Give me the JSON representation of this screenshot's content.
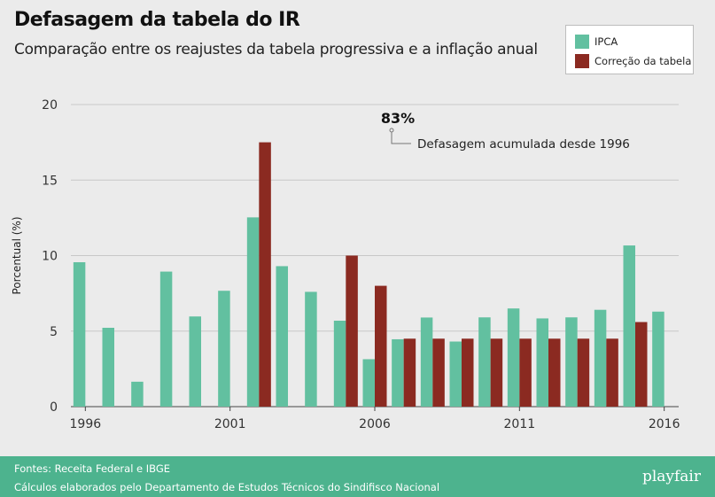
{
  "header": {
    "title": "Defasagem da tabela do IR",
    "subtitle": "Comparação entre os reajustes da tabela progressiva e a inflação anual"
  },
  "legend": [
    {
      "label": "IPCA",
      "color": "#62c0a0"
    },
    {
      "label": "Correção da tabela",
      "color": "#8b2a21"
    }
  ],
  "annotation": {
    "value": "83%",
    "label": "Defasagem acumulada desde 1996"
  },
  "footer": {
    "line1": "Fontes: Receita Federal e IBGE",
    "line2": "Cálculos elaborados pelo Departamento de Estudos Técnicos do Sindifisco Nacional",
    "brand": "playfair"
  },
  "chart_data": {
    "type": "bar",
    "ylabel": "Porcentual (%)",
    "xlabel": "",
    "ylim": [
      0,
      20
    ],
    "yticks": [
      0,
      5,
      10,
      15,
      20
    ],
    "xtick_labels": [
      "1996",
      "2001",
      "2006",
      "2011",
      "2016"
    ],
    "grid": true,
    "legend_position": "top-right",
    "categories": [
      "1996",
      "1997",
      "1998",
      "1999",
      "2000",
      "2001",
      "2002",
      "2003",
      "2004",
      "2005",
      "2006",
      "2007",
      "2008",
      "2009",
      "2010",
      "2011",
      "2012",
      "2013",
      "2014",
      "2015",
      "2016"
    ],
    "series": [
      {
        "name": "IPCA",
        "color": "#62c0a0",
        "values": [
          9.56,
          5.22,
          1.65,
          8.94,
          5.97,
          7.67,
          12.53,
          9.3,
          7.6,
          5.69,
          3.14,
          4.46,
          5.9,
          4.31,
          5.91,
          6.5,
          5.84,
          5.91,
          6.41,
          10.67,
          6.29
        ]
      },
      {
        "name": "Correção da tabela",
        "color": "#8b2a21",
        "values": [
          0,
          0,
          0,
          0,
          0,
          0,
          17.5,
          0,
          0,
          10.0,
          8.0,
          4.5,
          4.5,
          4.5,
          4.5,
          4.5,
          4.5,
          4.5,
          4.5,
          5.6,
          0
        ]
      }
    ]
  }
}
